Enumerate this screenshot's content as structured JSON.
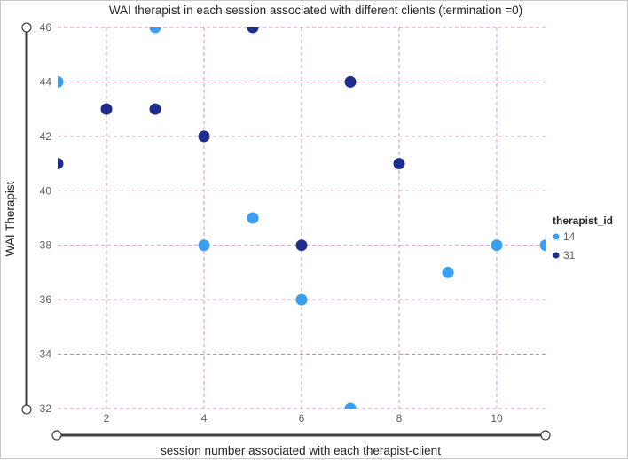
{
  "chart_data": {
    "type": "scatter",
    "title": "WAI therapist in each session associated with different clients (termination =0)",
    "xlabel": "session number associated with each therapist-client",
    "ylabel": "WAI Therapist",
    "xlim": [
      1,
      11
    ],
    "ylim": [
      32,
      46
    ],
    "x_ticks": [
      2,
      4,
      6,
      8,
      10
    ],
    "y_ticks": [
      32,
      34,
      36,
      38,
      40,
      42,
      44,
      46
    ],
    "grid": true,
    "legend": {
      "title": "therapist_id",
      "position": "right"
    },
    "series": [
      {
        "name": "14",
        "color": "#3a9ff0",
        "points": [
          {
            "x": 1,
            "y": 44
          },
          {
            "x": 3,
            "y": 46
          },
          {
            "x": 4,
            "y": 38
          },
          {
            "x": 5,
            "y": 39
          },
          {
            "x": 6,
            "y": 36
          },
          {
            "x": 7,
            "y": 32
          },
          {
            "x": 9,
            "y": 37
          },
          {
            "x": 10,
            "y": 38
          },
          {
            "x": 11,
            "y": 38
          }
        ]
      },
      {
        "name": "31",
        "color": "#1c2d8c",
        "points": [
          {
            "x": 1,
            "y": 41
          },
          {
            "x": 2,
            "y": 43
          },
          {
            "x": 3,
            "y": 43
          },
          {
            "x": 4,
            "y": 42
          },
          {
            "x": 5,
            "y": 46
          },
          {
            "x": 6,
            "y": 38
          },
          {
            "x": 7,
            "y": 44
          },
          {
            "x": 8,
            "y": 41
          }
        ]
      }
    ]
  }
}
